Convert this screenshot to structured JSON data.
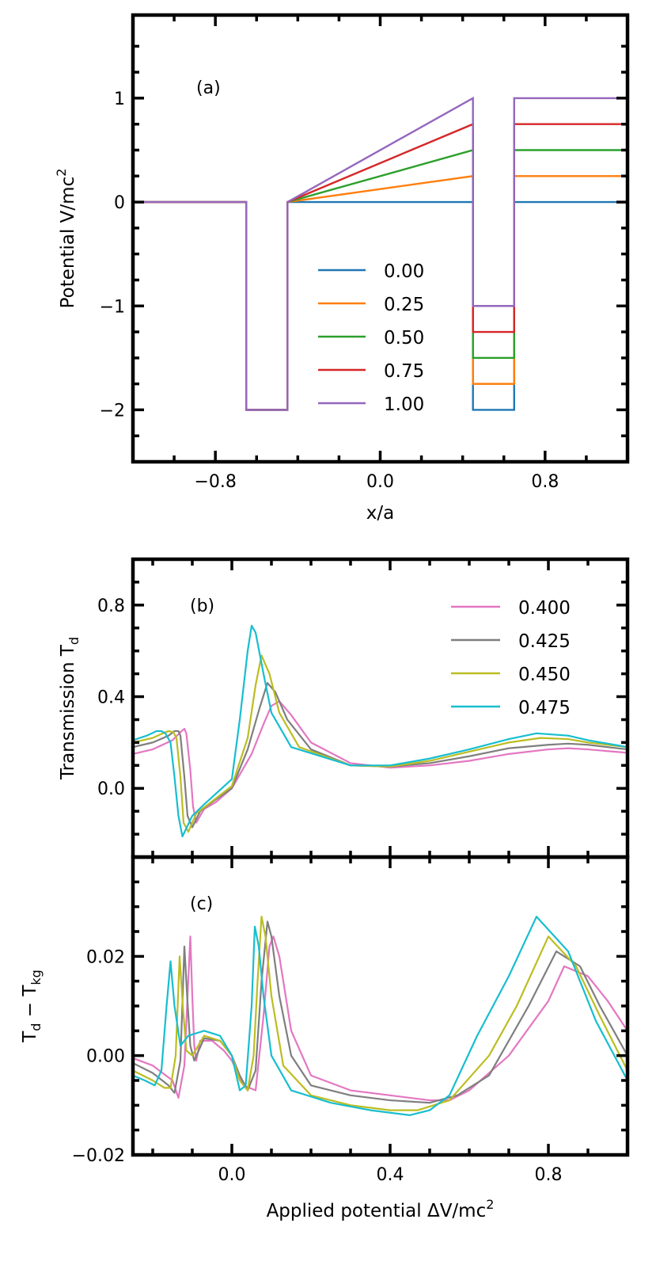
{
  "chart_data": [
    {
      "type": "line",
      "panel_label": "(a)",
      "xlabel": "x/a",
      "ylabel": "Potential V/mc²",
      "ylabel_main": "Potential V/mc",
      "ylabel_sup": "2",
      "xlim": [
        -1.2,
        1.2
      ],
      "ylim": [
        -2.5,
        1.8
      ],
      "xticks": [
        -0.8,
        0.0,
        0.8
      ],
      "xtick_labels": [
        "−0.8",
        "0.0",
        "0.8"
      ],
      "yticks": [
        1,
        0,
        -1,
        -2
      ],
      "ytick_labels": [
        "1",
        "0",
        "−1",
        "−2"
      ],
      "legend_location": "center",
      "well_depth": -2.0,
      "left_well": [
        -0.65,
        -0.45
      ],
      "right_well": [
        0.45,
        0.65
      ],
      "series": [
        {
          "name": "0.00",
          "bias": 0.0,
          "color": "#1f77b4"
        },
        {
          "name": "0.25",
          "bias": 0.25,
          "color": "#ff7f0e"
        },
        {
          "name": "0.50",
          "bias": 0.5,
          "color": "#2ca02c"
        },
        {
          "name": "0.75",
          "bias": 0.75,
          "color": "#d62728"
        },
        {
          "name": "1.00",
          "bias": 1.0,
          "color": "#9467bd"
        }
      ]
    },
    {
      "type": "line",
      "panel_label": "(b)",
      "xlabel": "",
      "ylabel": "Transmission T_d",
      "ylabel_main": "Transmission T",
      "ylabel_sub": "d",
      "xlim": [
        -0.25,
        1.0
      ],
      "ylim": [
        -0.3,
        1.0
      ],
      "yticks": [
        0.8,
        0.4,
        0.0
      ],
      "ytick_labels": [
        "0.8",
        "0.4",
        "0.0"
      ],
      "legend_location": "top-right",
      "series": [
        {
          "name": "0.400",
          "color": "#e377c2",
          "x": [
            -0.25,
            -0.2,
            -0.15,
            -0.13,
            -0.12,
            -0.115,
            -0.105,
            -0.098,
            -0.09,
            -0.07,
            -0.04,
            0.0,
            0.05,
            0.08,
            0.1,
            0.12,
            0.15,
            0.2,
            0.3,
            0.4,
            0.5,
            0.6,
            0.7,
            0.8,
            0.85,
            0.9,
            1.0
          ],
          "y": [
            0.15,
            0.17,
            0.21,
            0.245,
            0.26,
            0.24,
            0.08,
            -0.08,
            -0.15,
            -0.09,
            -0.06,
            0.0,
            0.15,
            0.28,
            0.36,
            0.38,
            0.32,
            0.2,
            0.11,
            0.09,
            0.1,
            0.12,
            0.15,
            0.17,
            0.175,
            0.17,
            0.155
          ]
        },
        {
          "name": "0.425",
          "color": "#7f7f7f",
          "x": [
            -0.25,
            -0.2,
            -0.16,
            -0.145,
            -0.135,
            -0.13,
            -0.12,
            -0.112,
            -0.1,
            -0.08,
            -0.05,
            0.0,
            0.04,
            0.07,
            0.09,
            0.11,
            0.14,
            0.2,
            0.3,
            0.4,
            0.5,
            0.6,
            0.7,
            0.8,
            0.85,
            0.9,
            1.0
          ],
          "y": [
            0.18,
            0.2,
            0.23,
            0.25,
            0.25,
            0.23,
            0.05,
            -0.12,
            -0.17,
            -0.1,
            -0.06,
            0.0,
            0.17,
            0.35,
            0.46,
            0.42,
            0.3,
            0.17,
            0.1,
            0.095,
            0.11,
            0.14,
            0.175,
            0.19,
            0.195,
            0.19,
            0.17
          ]
        },
        {
          "name": "0.450",
          "color": "#bcbd22",
          "x": [
            -0.25,
            -0.2,
            -0.175,
            -0.16,
            -0.148,
            -0.14,
            -0.13,
            -0.122,
            -0.11,
            -0.09,
            -0.06,
            0.0,
            0.04,
            0.06,
            0.075,
            0.095,
            0.12,
            0.17,
            0.3,
            0.4,
            0.5,
            0.6,
            0.7,
            0.78,
            0.85,
            0.9,
            1.0
          ],
          "y": [
            0.2,
            0.22,
            0.24,
            0.25,
            0.245,
            0.22,
            0.05,
            -0.15,
            -0.19,
            -0.11,
            -0.07,
            0.01,
            0.22,
            0.45,
            0.58,
            0.5,
            0.33,
            0.18,
            0.1,
            0.095,
            0.12,
            0.16,
            0.2,
            0.22,
            0.215,
            0.2,
            0.18
          ]
        },
        {
          "name": "0.475",
          "color": "#17becf",
          "x": [
            -0.25,
            -0.215,
            -0.19,
            -0.178,
            -0.168,
            -0.155,
            -0.145,
            -0.135,
            -0.125,
            -0.1,
            -0.07,
            0.0,
            0.02,
            0.04,
            0.05,
            0.06,
            0.08,
            0.1,
            0.15,
            0.3,
            0.4,
            0.5,
            0.6,
            0.7,
            0.77,
            0.85,
            0.9,
            1.0
          ],
          "y": [
            0.21,
            0.23,
            0.25,
            0.25,
            0.24,
            0.2,
            0.05,
            -0.12,
            -0.21,
            -0.12,
            -0.07,
            0.04,
            0.3,
            0.6,
            0.71,
            0.68,
            0.5,
            0.33,
            0.18,
            0.1,
            0.1,
            0.13,
            0.17,
            0.215,
            0.24,
            0.23,
            0.21,
            0.18
          ]
        }
      ]
    },
    {
      "type": "line",
      "panel_label": "(c)",
      "xlabel": "Applied potential ΔV/mc²",
      "xlabel_main": "Applied potential ΔV/mc",
      "xlabel_sup": "2",
      "ylabel": "T_d − T_kg",
      "ylabel_main": "T",
      "ylabel_sub1": "d",
      "ylabel_mid": " − T",
      "ylabel_sub2": "kg",
      "xlim": [
        -0.25,
        1.0
      ],
      "ylim": [
        -0.02,
        0.04
      ],
      "xticks": [
        0.0,
        0.4,
        0.8
      ],
      "xtick_labels": [
        "0.0",
        "0.4",
        "0.8"
      ],
      "yticks": [
        0.02,
        0.0,
        -0.02
      ],
      "ytick_labels": [
        "0.02",
        "0.00",
        "−0.02"
      ],
      "series": [
        {
          "name": "0.400",
          "color": "#e377c2",
          "x": [
            -0.25,
            -0.2,
            -0.15,
            -0.135,
            -0.12,
            -0.105,
            -0.1,
            -0.095,
            -0.09,
            -0.08,
            -0.05,
            -0.02,
            0.0,
            0.03,
            0.06,
            0.08,
            0.095,
            0.105,
            0.12,
            0.15,
            0.2,
            0.3,
            0.4,
            0.5,
            0.55,
            0.6,
            0.7,
            0.8,
            0.84,
            0.9,
            0.95,
            1.0
          ],
          "y": [
            -0.0005,
            -0.002,
            -0.005,
            -0.0085,
            -0.002,
            0.024,
            0.012,
            0.002,
            -0.001,
            0.003,
            0.003,
            0.001,
            -0.001,
            -0.006,
            -0.007,
            0.008,
            0.022,
            0.024,
            0.02,
            0.005,
            -0.004,
            -0.007,
            -0.008,
            -0.009,
            -0.009,
            -0.007,
            0.0,
            0.011,
            0.018,
            0.016,
            0.011,
            0.005
          ]
        },
        {
          "name": "0.425",
          "color": "#7f7f7f",
          "x": [
            -0.25,
            -0.2,
            -0.16,
            -0.145,
            -0.13,
            -0.12,
            -0.113,
            -0.105,
            -0.095,
            -0.07,
            -0.03,
            0.0,
            0.02,
            0.04,
            0.06,
            0.075,
            0.09,
            0.1,
            0.12,
            0.15,
            0.2,
            0.3,
            0.4,
            0.5,
            0.57,
            0.65,
            0.75,
            0.82,
            0.88,
            0.93,
            1.0
          ],
          "y": [
            -0.0015,
            -0.0035,
            -0.006,
            -0.0075,
            -0.001,
            0.022,
            0.012,
            0.002,
            -0.001,
            0.0035,
            0.003,
            0.0,
            -0.004,
            -0.007,
            -0.003,
            0.015,
            0.027,
            0.024,
            0.012,
            0.0,
            -0.006,
            -0.008,
            -0.009,
            -0.0095,
            -0.008,
            -0.004,
            0.01,
            0.021,
            0.018,
            0.01,
            0.0
          ]
        },
        {
          "name": "0.450",
          "color": "#bcbd22",
          "x": [
            -0.25,
            -0.2,
            -0.17,
            -0.155,
            -0.142,
            -0.132,
            -0.124,
            -0.115,
            -0.1,
            -0.07,
            -0.03,
            0.0,
            0.02,
            0.04,
            0.055,
            0.065,
            0.075,
            0.085,
            0.1,
            0.13,
            0.2,
            0.3,
            0.4,
            0.47,
            0.55,
            0.65,
            0.72,
            0.8,
            0.87,
            0.93,
            1.0
          ],
          "y": [
            -0.003,
            -0.005,
            -0.0065,
            -0.0065,
            0.0,
            0.02,
            0.01,
            0.001,
            0.0,
            0.004,
            0.003,
            0.0,
            -0.005,
            -0.007,
            0.0,
            0.015,
            0.028,
            0.024,
            0.012,
            -0.002,
            -0.008,
            -0.01,
            -0.011,
            -0.011,
            -0.009,
            0.0,
            0.01,
            0.024,
            0.018,
            0.008,
            -0.003
          ]
        },
        {
          "name": "0.475",
          "color": "#17becf",
          "x": [
            -0.25,
            -0.22,
            -0.195,
            -0.178,
            -0.165,
            -0.155,
            -0.145,
            -0.13,
            -0.11,
            -0.07,
            -0.03,
            0.0,
            0.02,
            0.035,
            0.05,
            0.058,
            0.068,
            0.08,
            0.1,
            0.15,
            0.25,
            0.35,
            0.45,
            0.5,
            0.55,
            0.62,
            0.7,
            0.77,
            0.85,
            0.92,
            1.0
          ],
          "y": [
            -0.004,
            -0.005,
            -0.006,
            -0.003,
            0.01,
            0.019,
            0.01,
            0.002,
            0.004,
            0.005,
            0.004,
            0.0,
            -0.007,
            -0.006,
            0.01,
            0.026,
            0.022,
            0.012,
            0.0,
            -0.007,
            -0.0095,
            -0.011,
            -0.012,
            -0.011,
            -0.008,
            0.004,
            0.016,
            0.028,
            0.021,
            0.007,
            -0.005
          ]
        }
      ]
    }
  ]
}
